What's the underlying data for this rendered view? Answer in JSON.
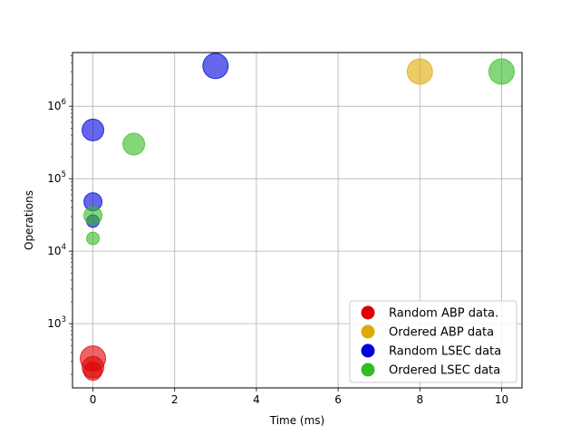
{
  "chart_data": {
    "type": "scatter",
    "xlabel": "Time (ms)",
    "ylabel": "Operations",
    "xlim": [
      -0.5,
      10.5
    ],
    "ylim": [
      130,
      5500000
    ],
    "yscale": "log",
    "grid": true,
    "legend_position": "lower-right",
    "x_ticks": [
      0,
      2,
      4,
      6,
      8,
      10
    ],
    "y_ticks": [
      {
        "value": 1000,
        "base": "10",
        "exp": "3"
      },
      {
        "value": 10000,
        "base": "10",
        "exp": "4"
      },
      {
        "value": 100000,
        "base": "10",
        "exp": "5"
      },
      {
        "value": 1000000,
        "base": "10",
        "exp": "6"
      }
    ],
    "series": [
      {
        "name": "Random ABP data.",
        "color": "#dd0000",
        "points": [
          {
            "x": 0,
            "y": 220,
            "size": 10
          },
          {
            "x": 0,
            "y": 250,
            "size": 12
          },
          {
            "x": 0,
            "y": 330,
            "size": 14
          }
        ]
      },
      {
        "name": "Ordered ABP data",
        "color": "#ddaa00",
        "points": [
          {
            "x": 8,
            "y": 3000000,
            "size": 14
          }
        ]
      },
      {
        "name": "Random LSEC data",
        "color": "#0000dd",
        "points": [
          {
            "x": 0,
            "y": 26000,
            "size": 7
          },
          {
            "x": 0,
            "y": 48000,
            "size": 10
          },
          {
            "x": 0,
            "y": 470000,
            "size": 12
          },
          {
            "x": 3,
            "y": 3600000,
            "size": 14
          }
        ]
      },
      {
        "name": "Ordered LSEC data",
        "color": "#33bb22",
        "points": [
          {
            "x": 0,
            "y": 15000,
            "size": 7
          },
          {
            "x": 0,
            "y": 31000,
            "size": 10
          },
          {
            "x": 1,
            "y": 300000,
            "size": 12
          },
          {
            "x": 10,
            "y": 3000000,
            "size": 14
          }
        ]
      }
    ]
  }
}
